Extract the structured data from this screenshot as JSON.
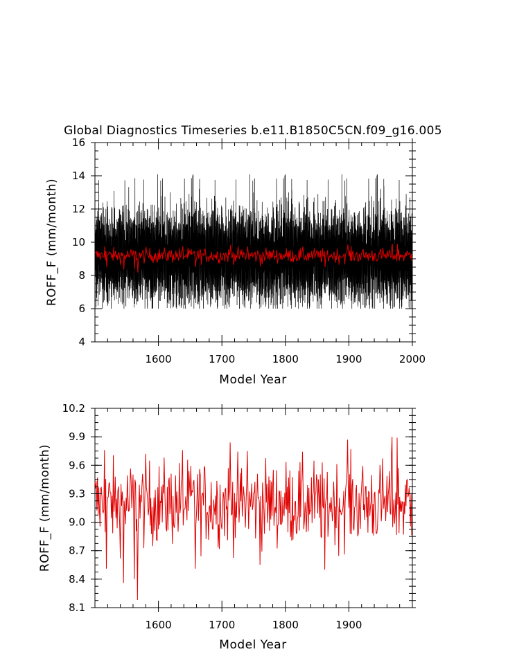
{
  "figure_title": "Global Diagnostics Timeseries b.e11.B1850C5CN.f09_g16.005",
  "chart_data": [
    {
      "type": "line",
      "title": "Global Diagnostics Timeseries b.e11.B1850C5CN.f09_g16.005",
      "xlabel": "Model Year",
      "ylabel": "ROFF_F (mm/month)",
      "xlim": [
        1500,
        2000
      ],
      "ylim": [
        4,
        16
      ],
      "xticks": [
        1600,
        1700,
        1800,
        1900,
        2000
      ],
      "xtick_labels": [
        "1600",
        "1700",
        "1800",
        "1900",
        "2000"
      ],
      "yticks": [
        4,
        6,
        8,
        10,
        12,
        14,
        16
      ],
      "ytick_labels": [
        "4",
        "6",
        "8",
        "10",
        "12",
        "14",
        "16"
      ],
      "grid": false,
      "series": [
        {
          "color": "#000000",
          "resolution": "monthly",
          "typical_range": [
            6.5,
            13.0
          ],
          "extremes": [
            6.0,
            14.1
          ],
          "mean": 9.2
        },
        {
          "color": "#e00000",
          "resolution": "annual",
          "typical_range": [
            8.7,
            9.7
          ],
          "mean": 9.2
        }
      ]
    },
    {
      "type": "line",
      "title": "",
      "xlabel": "Model Year",
      "ylabel": "ROFF_F (mm/month)",
      "xlim": [
        1500,
        2000
      ],
      "ylim": [
        8.1,
        10.2
      ],
      "xticks": [
        1600,
        1700,
        1800,
        1900
      ],
      "xtick_labels": [
        "1600",
        "1700",
        "1800",
        "1900"
      ],
      "yticks": [
        8.1,
        8.4,
        8.7,
        9.0,
        9.3,
        9.6,
        9.9,
        10.2
      ],
      "ytick_labels": [
        "8.1",
        "8.4",
        "8.7",
        "9.0",
        "9.3",
        "9.6",
        "9.9",
        "10.2"
      ],
      "grid": false,
      "series": [
        {
          "color": "#e00000",
          "resolution": "annual",
          "x_start": 1500,
          "x_end": 1999,
          "mean": 9.2,
          "highlights": [
            {
              "x": 1515,
              "y": 9.76
            },
            {
              "x": 1518,
              "y": 8.51
            },
            {
              "x": 1545,
              "y": 8.36
            },
            {
              "x": 1562,
              "y": 8.4
            },
            {
              "x": 1567,
              "y": 8.18
            },
            {
              "x": 1580,
              "y": 9.72
            },
            {
              "x": 1638,
              "y": 9.76
            },
            {
              "x": 1658,
              "y": 8.51
            },
            {
              "x": 1713,
              "y": 9.84
            },
            {
              "x": 1740,
              "y": 9.75
            },
            {
              "x": 1760,
              "y": 8.55
            },
            {
              "x": 1862,
              "y": 8.5
            },
            {
              "x": 1898,
              "y": 9.87
            },
            {
              "x": 1968,
              "y": 9.9
            },
            {
              "x": 1976,
              "y": 9.89
            }
          ]
        }
      ]
    }
  ]
}
